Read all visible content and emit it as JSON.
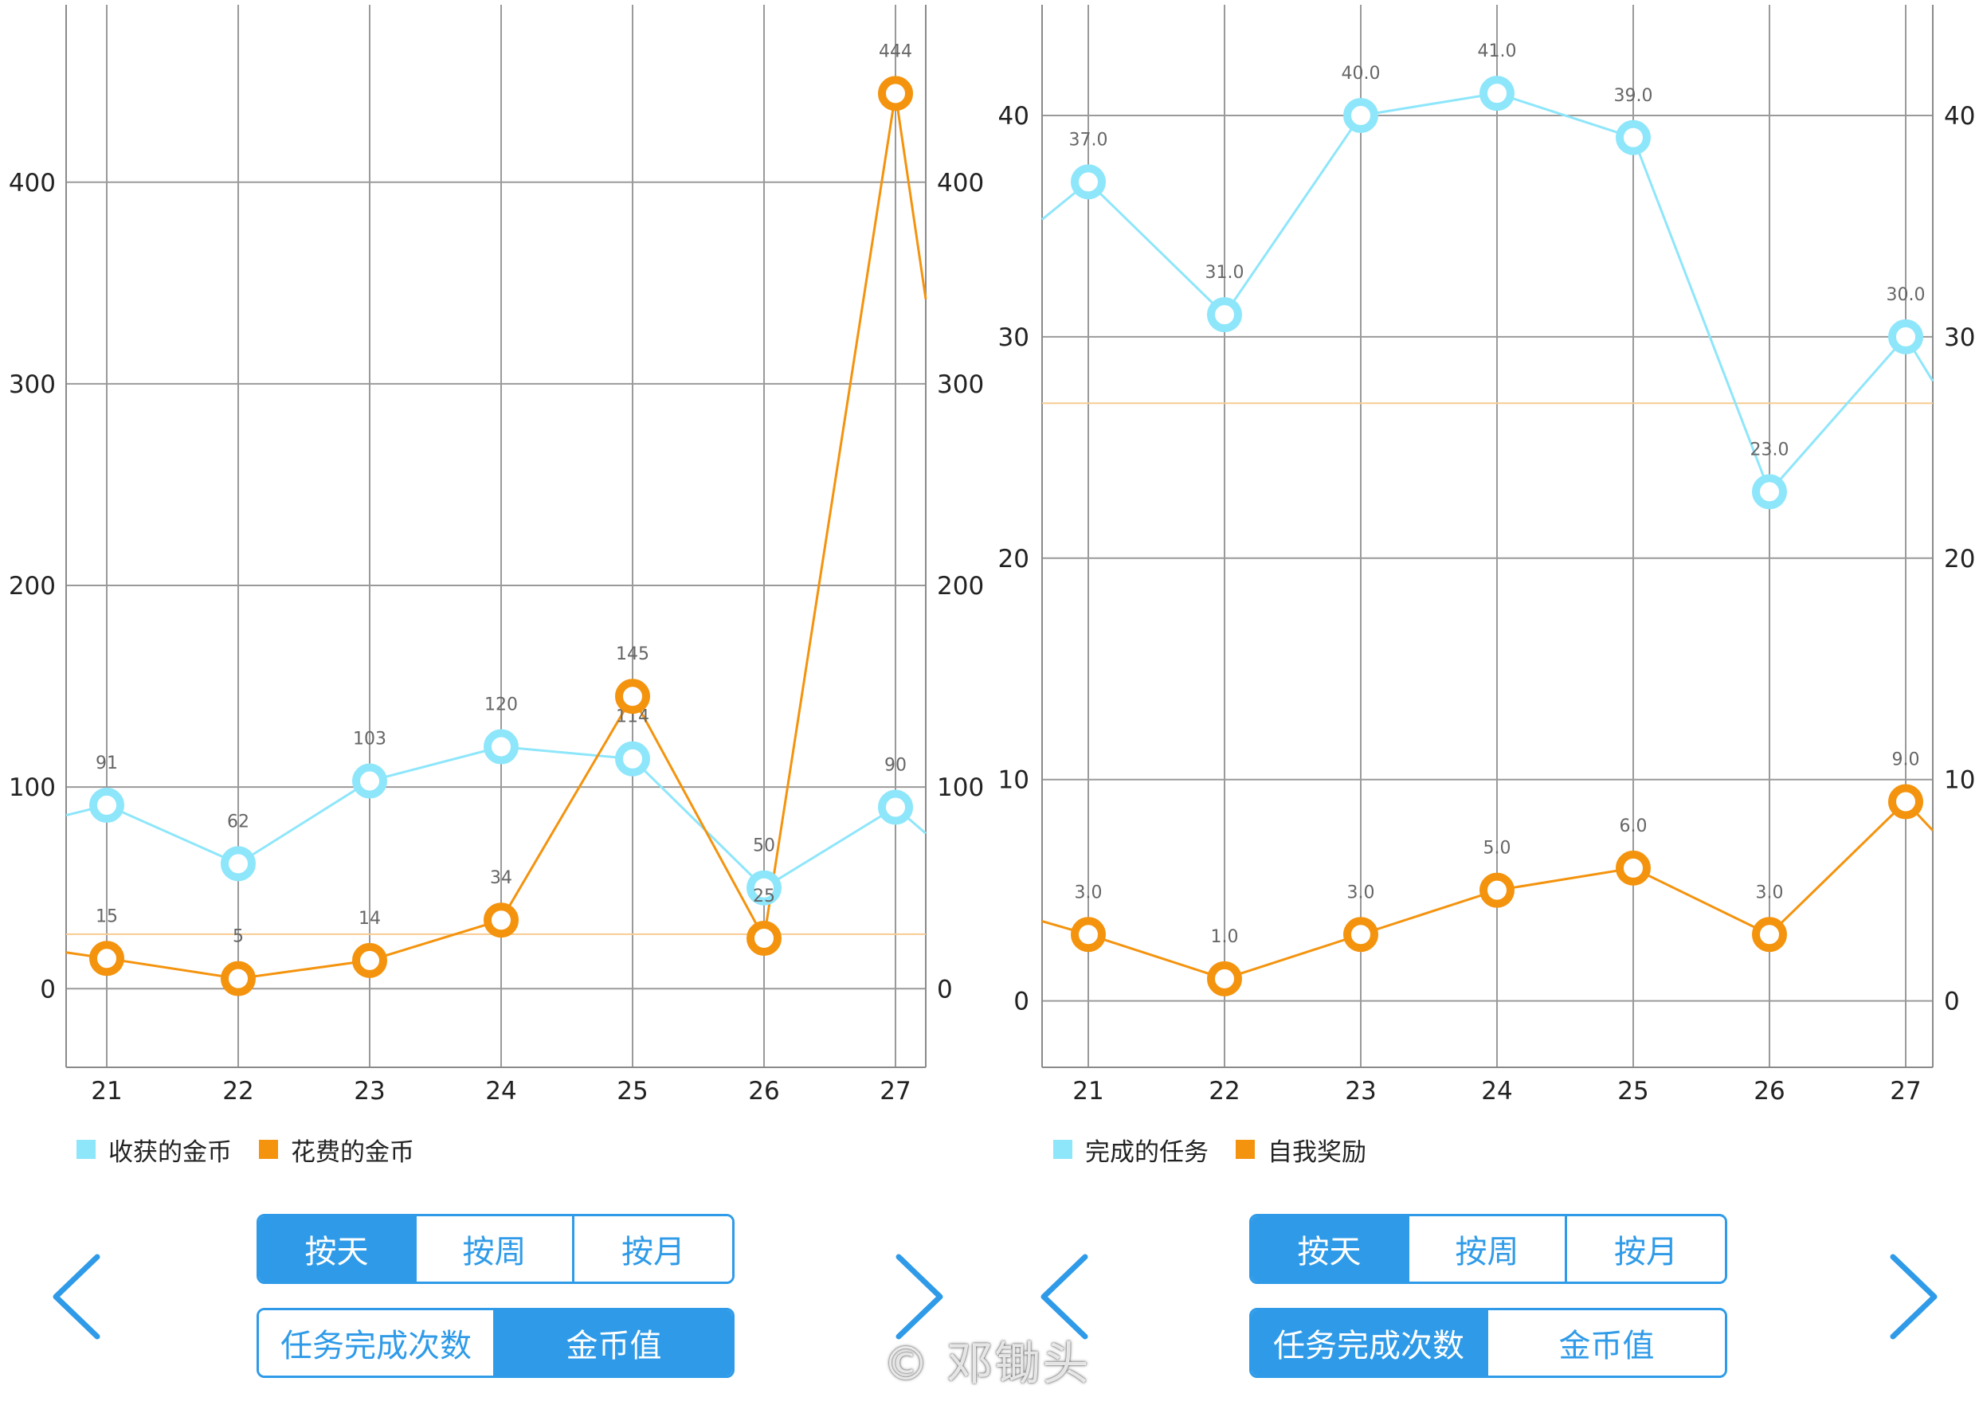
{
  "left_panel": {
    "legend": [
      {
        "label": "收获的金币",
        "color": "#8ee6fb"
      },
      {
        "label": "花费的金币",
        "color": "#f4930d"
      }
    ],
    "period_buttons": [
      {
        "label": "按天",
        "active": true
      },
      {
        "label": "按周",
        "active": false
      },
      {
        "label": "按月",
        "active": false
      }
    ],
    "mode_buttons": [
      {
        "label": "任务完成次数",
        "active": false
      },
      {
        "label": "金币值",
        "active": true
      }
    ],
    "prev_icon": "chevron-left-icon",
    "next_icon": "chevron-right-icon"
  },
  "right_panel": {
    "legend": [
      {
        "label": "完成的任务",
        "color": "#8ee6fb"
      },
      {
        "label": "自我奖励",
        "color": "#f4930d"
      }
    ],
    "period_buttons": [
      {
        "label": "按天",
        "active": true
      },
      {
        "label": "按周",
        "active": false
      },
      {
        "label": "按月",
        "active": false
      }
    ],
    "mode_buttons": [
      {
        "label": "任务完成次数",
        "active": true
      },
      {
        "label": "金币值",
        "active": false
      }
    ],
    "prev_icon": "chevron-left-icon",
    "next_icon": "chevron-right-icon"
  },
  "watermark": "© 邓锄头",
  "chart_data": [
    {
      "type": "line",
      "categories": [
        "21",
        "22",
        "23",
        "24",
        "25",
        "26",
        "27"
      ],
      "series": [
        {
          "name": "收获的金币",
          "color": "#8ee6fb",
          "values": [
            91,
            62,
            103,
            120,
            114,
            50,
            90
          ],
          "labels": [
            "91",
            "62",
            "103",
            "120",
            "114",
            "50",
            "90"
          ],
          "edge_left": 86,
          "edge_right": 77
        },
        {
          "name": "花费的金币",
          "color": "#f4930d",
          "values": [
            15,
            5,
            14,
            34,
            145,
            25,
            444
          ],
          "labels": [
            "15",
            "5",
            "14",
            "34",
            "145",
            "25",
            "444"
          ],
          "edge_left": 18,
          "edge_right": 342
        }
      ],
      "reference_line": 27,
      "ylim": [
        -39,
        488
      ],
      "y_ticks": [
        0,
        100,
        200,
        300,
        400
      ],
      "grid": true,
      "legend_position": "bottom-left"
    },
    {
      "type": "line",
      "categories": [
        "21",
        "22",
        "23",
        "24",
        "25",
        "26",
        "27"
      ],
      "series": [
        {
          "name": "完成的任务",
          "color": "#8ee6fb",
          "values": [
            37,
            31,
            40,
            41,
            39,
            23,
            30
          ],
          "labels": [
            "37.0",
            "31.0",
            "40.0",
            "41.0",
            "39.0",
            "23.0",
            "30.0"
          ],
          "edge_left": 35.3,
          "edge_right": 28
        },
        {
          "name": "自我奖励",
          "color": "#f4930d",
          "values": [
            3,
            1,
            3,
            5,
            6,
            3,
            9
          ],
          "labels": [
            "3.0",
            "1.0",
            "3.0",
            "5.0",
            "6.0",
            "3.0",
            "9.0"
          ],
          "edge_left": 3.6,
          "edge_right": 7.7
        }
      ],
      "reference_line": 27,
      "ylim": [
        -3,
        45
      ],
      "y_ticks": [
        0,
        10,
        20,
        30,
        40
      ],
      "grid": true,
      "legend_position": "bottom-left"
    }
  ]
}
